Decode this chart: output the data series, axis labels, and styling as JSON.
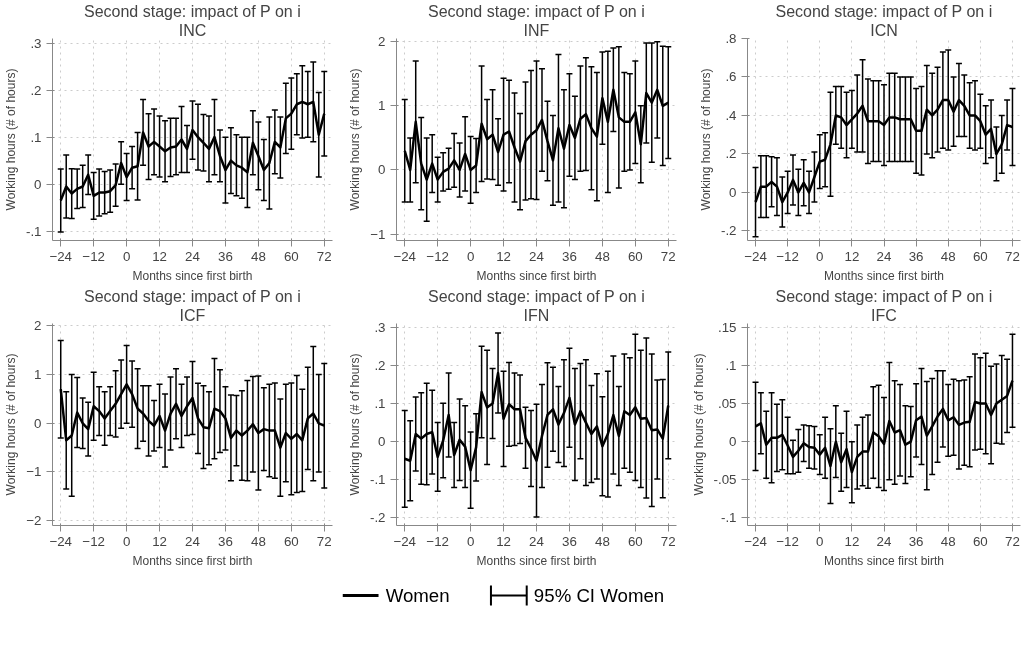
{
  "chart_data": [
    {
      "type": "line",
      "title": "Second stage: impact of P on i",
      "subtitle": "INC",
      "xlabel": "Months since first birth",
      "ylabel": "Working hours (# of hours)",
      "grid": true,
      "legend": "bottom",
      "annotations": [
        "95% CI Women"
      ],
      "x": [
        -24,
        -22,
        -20,
        -18,
        -16,
        -14,
        -12,
        -10,
        -8,
        -6,
        -4,
        -2,
        0,
        2,
        4,
        6,
        8,
        10,
        12,
        14,
        16,
        18,
        20,
        22,
        24,
        26,
        28,
        30,
        32,
        34,
        36,
        38,
        40,
        42,
        44,
        46,
        48,
        50,
        52,
        54,
        56,
        58,
        60,
        62,
        64,
        66,
        68,
        70,
        72
      ],
      "xlim": [
        -27,
        75
      ],
      "xticks": [
        -24,
        -12,
        0,
        12,
        24,
        36,
        48,
        60,
        72
      ],
      "ylim": [
        -0.12,
        0.31
      ],
      "yticks": [
        {
          "value": -0.1,
          "label": "-.1"
        },
        0,
        {
          "value": 0.1,
          "label": ".1"
        },
        {
          "value": 0.2,
          "label": ".2"
        },
        {
          "value": 0.3,
          "label": ".3"
        }
      ],
      "series": [
        {
          "name": "Women",
          "color": "#000000",
          "values": [
            -0.035,
            -0.005,
            -0.02,
            -0.01,
            -0.005,
            0.02,
            -0.025,
            -0.018,
            -0.018,
            -0.015,
            -0.002,
            0.045,
            0.015,
            0.035,
            0.038,
            0.11,
            0.08,
            0.09,
            0.08,
            0.07,
            0.078,
            0.08,
            0.095,
            0.075,
            0.115,
            0.1,
            0.088,
            0.075,
            0.1,
            0.06,
            0.03,
            0.05,
            0.04,
            0.035,
            0.025,
            0.088,
            0.06,
            0.03,
            0.045,
            0.09,
            0.078,
            0.14,
            0.15,
            0.17,
            0.175,
            0.17,
            0.175,
            0.105,
            0.15
          ],
          "errors": [
            0.067,
            0.067,
            0.053,
            0.042,
            0.045,
            0.042,
            0.05,
            0.05,
            0.045,
            0.045,
            0.045,
            0.045,
            0.05,
            0.045,
            0.072,
            0.07,
            0.07,
            0.07,
            0.065,
            0.065,
            0.062,
            0.06,
            0.07,
            0.05,
            0.062,
            0.07,
            0.06,
            0.07,
            0.08,
            0.055,
            0.07,
            0.07,
            0.065,
            0.065,
            0.075,
            0.068,
            0.072,
            0.065,
            0.098,
            0.068,
            0.065,
            0.075,
            0.076,
            0.065,
            0.077,
            0.07,
            0.085,
            0.09,
            0.09
          ]
        }
      ]
    },
    {
      "type": "line",
      "title": "Second stage: impact of P on i",
      "subtitle": "INF",
      "xlabel": "Months since first birth",
      "ylabel": "Working hours (# of hours)",
      "grid": true,
      "x": [
        -24,
        -22,
        -20,
        -18,
        -16,
        -14,
        -12,
        -10,
        -8,
        -6,
        -4,
        -2,
        0,
        2,
        4,
        6,
        8,
        10,
        12,
        14,
        16,
        18,
        20,
        22,
        24,
        26,
        28,
        30,
        32,
        34,
        36,
        38,
        40,
        42,
        44,
        46,
        48,
        50,
        52,
        54,
        56,
        58,
        60,
        62,
        64,
        66,
        68,
        70,
        72
      ],
      "xlim": [
        -27,
        75
      ],
      "xticks": [
        -24,
        -12,
        0,
        12,
        24,
        36,
        48,
        60,
        72
      ],
      "ylim": [
        -1.1,
        2.05
      ],
      "yticks": [
        -1,
        0,
        1,
        2
      ],
      "series": [
        {
          "color": "#000000",
          "values": [
            0.3,
            0.0,
            0.75,
            0.1,
            -0.15,
            0.1,
            -0.15,
            -0.03,
            0.02,
            0.15,
            0.0,
            0.25,
            0.0,
            0.07,
            0.72,
            0.48,
            0.55,
            0.28,
            0.55,
            0.6,
            0.35,
            0.13,
            0.45,
            0.55,
            0.62,
            0.78,
            0.45,
            0.15,
            0.65,
            0.33,
            0.7,
            0.5,
            0.8,
            0.87,
            0.65,
            0.52,
            1.12,
            0.75,
            1.25,
            0.82,
            0.75,
            0.75,
            0.9,
            0.4,
            1.2,
            1.05,
            1.25,
            1.0,
            1.05
          ],
          "errors": [
            0.8,
            0.5,
            0.95,
            0.72,
            0.65,
            0.45,
            0.35,
            0.3,
            0.32,
            0.42,
            0.42,
            0.58,
            0.52,
            0.42,
            0.9,
            0.62,
            0.7,
            0.52,
            0.88,
            0.8,
            0.85,
            0.75,
            0.92,
            1.0,
            1.08,
            0.8,
            0.62,
            0.7,
            1.15,
            0.92,
            0.8,
            0.65,
            0.82,
            0.88,
            0.96,
            1.0,
            0.72,
            1.1,
            0.65,
            1.1,
            0.77,
            0.75,
            0.8,
            0.6,
            0.78,
            0.93,
            0.75,
            0.93,
            0.87
          ]
        }
      ]
    },
    {
      "type": "line",
      "title": "Second stage: impact of P on i",
      "subtitle": "ICN",
      "xlabel": "Months since first birth",
      "ylabel": "Working hours (# of hours)",
      "grid": true,
      "x": [
        -24,
        -22,
        -20,
        -18,
        -16,
        -14,
        -12,
        -10,
        -8,
        -6,
        -4,
        -2,
        0,
        2,
        4,
        6,
        8,
        10,
        12,
        14,
        16,
        18,
        20,
        22,
        24,
        26,
        28,
        30,
        32,
        34,
        36,
        38,
        40,
        42,
        44,
        46,
        48,
        50,
        52,
        54,
        56,
        58,
        60,
        62,
        64,
        66,
        68,
        70,
        72
      ],
      "xlim": [
        -27,
        75
      ],
      "xticks": [
        -24,
        -12,
        0,
        12,
        24,
        36,
        48,
        60,
        72
      ],
      "ylim": [
        -0.25,
        0.8
      ],
      "yticks": [
        {
          "value": -0.2,
          "label": "-.2"
        },
        0,
        {
          "value": 0.2,
          "label": ".2"
        },
        {
          "value": 0.4,
          "label": ".4"
        },
        {
          "value": 0.6,
          "label": ".6"
        },
        {
          "value": 0.8,
          "label": ".8"
        }
      ],
      "series": [
        {
          "color": "#000000",
          "values": [
            -0.05,
            0.03,
            0.03,
            0.055,
            0.03,
            -0.05,
            0.0,
            0.065,
            0.0,
            0.05,
            0.0,
            0.08,
            0.16,
            0.17,
            0.25,
            0.4,
            0.39,
            0.35,
            0.38,
            0.41,
            0.45,
            0.37,
            0.37,
            0.37,
            0.35,
            0.39,
            0.39,
            0.38,
            0.38,
            0.38,
            0.32,
            0.32,
            0.43,
            0.4,
            0.43,
            0.48,
            0.48,
            0.42,
            0.48,
            0.45,
            0.4,
            0.4,
            0.37,
            0.3,
            0.33,
            0.2,
            0.25,
            0.35,
            0.34
          ],
          "errors": [
            0.18,
            0.16,
            0.16,
            0.13,
            0.15,
            0.13,
            0.11,
            0.13,
            0.12,
            0.12,
            0.11,
            0.13,
            0.14,
            0.14,
            0.27,
            0.15,
            0.16,
            0.17,
            0.15,
            0.2,
            0.24,
            0.22,
            0.21,
            0.21,
            0.21,
            0.23,
            0.23,
            0.22,
            0.22,
            0.22,
            0.22,
            0.23,
            0.23,
            0.22,
            0.22,
            0.25,
            0.26,
            0.18,
            0.19,
            0.16,
            0.17,
            0.18,
            0.14,
            0.15,
            0.15,
            0.14,
            0.15,
            0.13,
            0.2
          ]
        }
      ]
    },
    {
      "type": "line",
      "title": "Second stage: impact of P on i",
      "subtitle": "ICF",
      "xlabel": "Months since first birth",
      "ylabel": "Working hours (# of hours)",
      "grid": true,
      "x": [
        -24,
        -22,
        -20,
        -18,
        -16,
        -14,
        -12,
        -10,
        -8,
        -6,
        -4,
        -2,
        0,
        2,
        4,
        6,
        8,
        10,
        12,
        14,
        16,
        18,
        20,
        22,
        24,
        26,
        28,
        30,
        32,
        34,
        36,
        38,
        40,
        42,
        44,
        46,
        48,
        50,
        52,
        54,
        56,
        58,
        60,
        62,
        64,
        66,
        68,
        70,
        72
      ],
      "xlim": [
        -27,
        75
      ],
      "xticks": [
        -24,
        -12,
        0,
        12,
        24,
        36,
        48,
        60,
        72
      ],
      "ylim": [
        -2.1,
        2.05
      ],
      "yticks": [
        -2,
        -1,
        0,
        1,
        2
      ],
      "series": [
        {
          "color": "#000000",
          "values": [
            0.7,
            -0.35,
            -0.25,
            0.22,
            0.0,
            -0.12,
            0.35,
            0.25,
            0.1,
            0.25,
            0.4,
            0.6,
            0.8,
            0.6,
            0.3,
            0.2,
            0.05,
            -0.05,
            0.15,
            -0.15,
            0.2,
            0.4,
            0.15,
            0.35,
            0.52,
            0.1,
            -0.08,
            -0.1,
            0.3,
            0.25,
            0.1,
            -0.3,
            -0.15,
            -0.25,
            -0.15,
            -0.02,
            -0.2,
            -0.12,
            -0.15,
            -0.15,
            -0.5,
            -0.2,
            -0.32,
            -0.22,
            -0.35,
            0.1,
            0.2,
            0.0,
            -0.05
          ],
          "errors": [
            1.0,
            1.0,
            1.25,
            0.72,
            0.52,
            0.55,
            0.7,
            0.5,
            0.55,
            0.5,
            0.68,
            0.7,
            0.8,
            0.68,
            0.82,
            0.57,
            0.72,
            0.52,
            0.65,
            0.75,
            0.75,
            0.72,
            0.65,
            0.6,
            0.75,
            0.72,
            0.85,
            0.75,
            1.03,
            0.85,
            0.65,
            0.88,
            0.72,
            0.92,
            1.03,
            0.98,
            1.17,
            0.85,
            0.95,
            0.98,
            1.0,
            1.0,
            1.15,
            1.2,
            1.05,
            1.05,
            1.38,
            1.0,
            1.28
          ]
        }
      ]
    },
    {
      "type": "line",
      "title": "Second stage: impact of P on i",
      "subtitle": "IFN",
      "xlabel": "Months since first birth",
      "ylabel": "Working hours (# of hours)",
      "grid": true,
      "x": [
        -24,
        -22,
        -20,
        -18,
        -16,
        -14,
        -12,
        -10,
        -8,
        -6,
        -4,
        -2,
        0,
        2,
        4,
        6,
        8,
        10,
        12,
        14,
        16,
        18,
        20,
        22,
        24,
        26,
        28,
        30,
        32,
        34,
        36,
        38,
        40,
        42,
        44,
        46,
        48,
        50,
        52,
        54,
        56,
        58,
        60,
        62,
        64,
        66,
        68,
        70,
        72
      ],
      "xlim": [
        -27,
        75
      ],
      "xticks": [
        -24,
        -12,
        0,
        12,
        24,
        36,
        48,
        60,
        72
      ],
      "ylim": [
        -0.22,
        0.31
      ],
      "yticks": [
        {
          "value": -0.2,
          "label": "-.2"
        },
        {
          "value": -0.1,
          "label": "-.1"
        },
        0,
        {
          "value": 0.1,
          "label": ".1"
        },
        {
          "value": 0.2,
          "label": ".2"
        },
        {
          "value": 0.3,
          "label": ".3"
        }
      ],
      "series": [
        {
          "color": "#000000",
          "values": [
            -0.045,
            -0.05,
            0.02,
            0.008,
            0.02,
            0.025,
            -0.04,
            0.003,
            0.07,
            -0.035,
            0.005,
            -0.013,
            -0.075,
            -0.015,
            0.13,
            0.09,
            0.1,
            0.18,
            0.06,
            0.098,
            0.085,
            0.085,
            0.01,
            -0.018,
            -0.05,
            0.015,
            0.07,
            0.085,
            0.045,
            0.075,
            0.115,
            0.045,
            0.08,
            0.05,
            0.02,
            0.04,
            -0.012,
            0.02,
            0.07,
            0.015,
            0.08,
            0.07,
            0.09,
            0.06,
            0.062,
            0.03,
            0.032,
            0.008,
            0.095
          ],
          "errors": [
            0.127,
            0.105,
            0.097,
            0.12,
            0.133,
            0.11,
            0.09,
            0.098,
            0.11,
            0.085,
            0.107,
            0.107,
            0.1,
            0.088,
            0.12,
            0.15,
            0.092,
            0.105,
            0.125,
            0.11,
            0.095,
            0.09,
            0.08,
            0.1,
            0.148,
            0.135,
            0.137,
            0.11,
            0.1,
            0.14,
            0.13,
            0.147,
            0.125,
            0.165,
            0.127,
            0.138,
            0.13,
            0.165,
            0.155,
            0.13,
            0.15,
            0.15,
            0.192,
            0.18,
            0.21,
            0.2,
            0.13,
            0.155,
            0.14
          ]
        }
      ]
    },
    {
      "type": "line",
      "title": "Second stage: impact of P on i",
      "subtitle": "IFC",
      "xlabel": "Months since first birth",
      "ylabel": "Working hours (# of hours)",
      "grid": true,
      "x": [
        -24,
        -22,
        -20,
        -18,
        -16,
        -14,
        -12,
        -10,
        -8,
        -6,
        -4,
        -2,
        0,
        2,
        4,
        6,
        8,
        10,
        12,
        14,
        16,
        18,
        20,
        22,
        24,
        26,
        28,
        30,
        32,
        34,
        36,
        38,
        40,
        42,
        44,
        46,
        48,
        50,
        52,
        54,
        56,
        58,
        60,
        62,
        64,
        66,
        68,
        70,
        72
      ],
      "xlim": [
        -27,
        75
      ],
      "xticks": [
        -24,
        -12,
        0,
        12,
        24,
        36,
        48,
        60,
        72
      ],
      "ylim": [
        -0.11,
        0.155
      ],
      "yticks": [
        {
          "value": -0.1,
          "label": "-.1"
        },
        {
          "value": -0.05,
          "label": "-.05"
        },
        0,
        {
          "value": 0.05,
          "label": ".05"
        },
        {
          "value": 0.1,
          "label": ".1"
        },
        {
          "value": 0.15,
          "label": ".15"
        }
      ],
      "series": [
        {
          "color": "#000000",
          "values": [
            0.02,
            0.024,
            -0.004,
            0.005,
            0.005,
            0.009,
            -0.005,
            -0.02,
            -0.012,
            -0.002,
            -0.007,
            -0.008,
            -0.017,
            -0.008,
            -0.032,
            0.0,
            -0.027,
            -0.01,
            -0.04,
            -0.02,
            -0.013,
            -0.013,
            0.012,
            0.007,
            -0.003,
            0.027,
            0.012,
            0.015,
            -0.004,
            0.0,
            0.028,
            0.033,
            0.008,
            0.02,
            0.033,
            0.043,
            0.028,
            0.032,
            0.022,
            0.025,
            0.026,
            0.052,
            0.05,
            0.05,
            0.035,
            0.05,
            0.055,
            0.06,
            0.08
          ],
          "errors": [
            0.058,
            0.04,
            0.044,
            0.059,
            0.044,
            0.046,
            0.037,
            0.022,
            0.028,
            0.024,
            0.028,
            0.028,
            0.026,
            0.04,
            0.049,
            0.047,
            0.038,
            0.05,
            0.04,
            0.042,
            0.045,
            0.048,
            0.06,
            0.067,
            0.061,
            0.077,
            0.068,
            0.06,
            0.051,
            0.046,
            0.048,
            0.063,
            0.071,
            0.063,
            0.06,
            0.05,
            0.047,
            0.05,
            0.058,
            0.056,
            0.059,
            0.063,
            0.06,
            0.066,
            0.064,
            0.052,
            0.058,
            0.048,
            0.061
          ]
        }
      ]
    }
  ]
}
